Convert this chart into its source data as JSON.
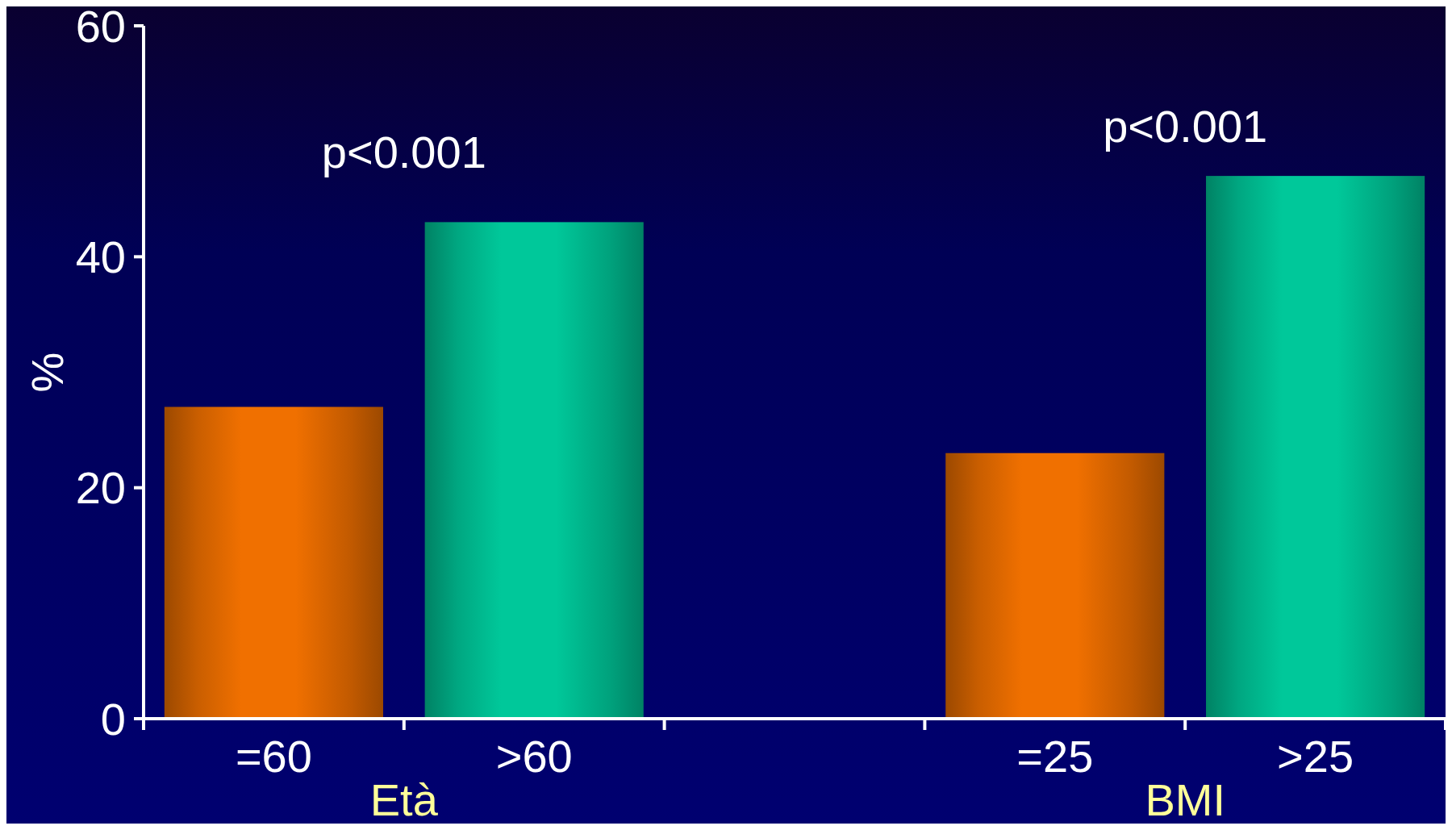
{
  "chart_data": {
    "type": "bar",
    "ylabel": "%",
    "categories": [
      "=60",
      ">60",
      null,
      "=25",
      ">25"
    ],
    "values": [
      27,
      43,
      null,
      23,
      47
    ],
    "colors": [
      "#f07000",
      "#00c89a",
      null,
      "#f07000",
      "#00c89a"
    ],
    "ylim": [
      0,
      60
    ],
    "yticks": [
      0,
      20,
      40,
      60
    ],
    "grid": false,
    "annotations": [
      "p<0.001",
      "p<0.001",
      "Età",
      "BMI"
    ]
  }
}
